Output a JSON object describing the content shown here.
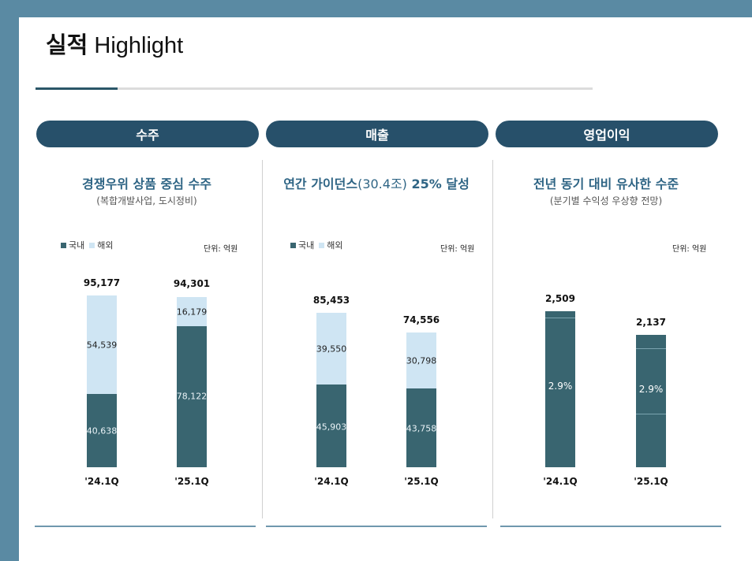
{
  "page": {
    "title_bold": "실적",
    "title_rest": "Highlight"
  },
  "sections": [
    {
      "pill": "수주",
      "heading": "경쟁우위 상품 중심 수주",
      "subheading": "(복합개발사업, 도시정비)",
      "legend": {
        "domestic": "국내",
        "overseas": "해외"
      },
      "unit": "단위: 억원",
      "bars": [
        {
          "label": "'24.1Q",
          "total": "95,177",
          "domestic": "40,638",
          "overseas": "54,539"
        },
        {
          "label": "'25.1Q",
          "total": "94,301",
          "domestic": "78,122",
          "overseas": "16,179"
        }
      ]
    },
    {
      "pill": "매출",
      "heading_main": "연간 가이던스",
      "heading_paren": "(30.4조)",
      "heading_tail": " 25% 달성",
      "legend": {
        "domestic": "국내",
        "overseas": "해외"
      },
      "unit": "단위: 억원",
      "bars": [
        {
          "label": "'24.1Q",
          "total": "85,453",
          "domestic": "45,903",
          "overseas": "39,550"
        },
        {
          "label": "'25.1Q",
          "total": "74,556",
          "domestic": "43,758",
          "overseas": "30,798"
        }
      ]
    },
    {
      "pill": "영업이익",
      "heading": "전년 동기 대비 유사한 수준",
      "subheading": "(분기별 수익성 우상향 전망)",
      "unit": "단위: 억원",
      "bars": [
        {
          "label": "'24.1Q",
          "total": "2,509",
          "margin": "2.9%"
        },
        {
          "label": "'25.1Q",
          "total": "2,137",
          "margin": "2.9%"
        }
      ]
    }
  ],
  "colors": {
    "frame": "#5a8aa3",
    "pill": "#27506a",
    "domestic": "#396570",
    "overseas": "#cfe5f3",
    "heading": "#2f6585"
  }
}
